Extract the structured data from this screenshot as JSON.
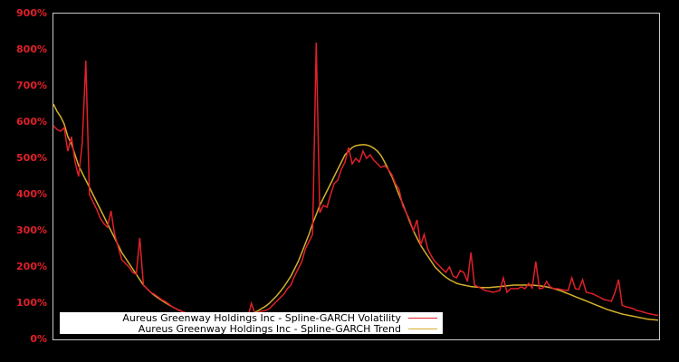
{
  "chart_data": {
    "type": "line",
    "title": "",
    "xlabel": "",
    "ylabel": "",
    "ylim": [
      0,
      900
    ],
    "yticks": [
      "0%",
      "100%",
      "200%",
      "300%",
      "400%",
      "500%",
      "600%",
      "700%",
      "800%",
      "900%"
    ],
    "grid": false,
    "legend_position": "lower-left",
    "background": "#000000",
    "axis_color": "#c8c8c8",
    "tick_color": "#e0202a",
    "series": [
      {
        "name": "Aureus Greenway Holdings Inc - Spline-GARCH Volatility",
        "color": "#e0202a",
        "values": [
          590,
          580,
          575,
          585,
          520,
          560,
          490,
          450,
          540,
          770,
          400,
          380,
          360,
          335,
          320,
          310,
          355,
          290,
          255,
          220,
          210,
          200,
          185,
          180,
          280,
          150,
          140,
          130,
          125,
          118,
          110,
          105,
          98,
          90,
          85,
          80,
          76,
          73,
          70,
          68,
          66,
          64,
          62,
          60,
          58,
          56,
          55,
          54,
          53,
          52,
          51,
          50,
          50,
          55,
          60,
          100,
          70,
          75,
          78,
          80,
          85,
          95,
          105,
          115,
          125,
          140,
          150,
          175,
          195,
          215,
          250,
          270,
          290,
          820,
          350,
          370,
          365,
          400,
          430,
          440,
          470,
          490,
          530,
          485,
          500,
          490,
          520,
          500,
          510,
          495,
          485,
          475,
          480,
          470,
          455,
          430,
          415,
          370,
          350,
          330,
          300,
          330,
          260,
          290,
          250,
          230,
          215,
          205,
          195,
          185,
          200,
          175,
          170,
          190,
          185,
          160,
          240,
          150,
          145,
          140,
          135,
          133,
          130,
          132,
          135,
          170,
          130,
          140,
          140,
          140,
          145,
          140,
          155,
          142,
          215,
          140,
          142,
          160,
          145,
          140,
          140,
          138,
          136,
          135,
          170,
          140,
          138,
          165,
          130,
          128,
          125,
          120,
          115,
          110,
          108,
          105,
          130,
          165,
          95,
          90,
          88,
          85,
          80,
          78,
          75,
          72,
          70,
          68,
          66
        ]
      },
      {
        "name": "Aureus Greenway Holdings Inc - Spline-GARCH Trend",
        "color": "#d4b02a",
        "values": [
          650,
          630,
          615,
          595,
          560,
          540,
          510,
          480,
          460,
          440,
          420,
          400,
          380,
          360,
          340,
          320,
          300,
          280,
          260,
          240,
          225,
          210,
          195,
          180,
          165,
          150,
          140,
          130,
          122,
          115,
          108,
          102,
          96,
          90,
          85,
          80,
          76,
          72,
          69,
          66,
          64,
          62,
          60,
          58,
          57,
          56,
          55,
          55,
          55,
          55,
          56,
          58,
          60,
          63,
          66,
          70,
          75,
          80,
          86,
          92,
          100,
          110,
          120,
          132,
          145,
          160,
          175,
          195,
          215,
          240,
          265,
          290,
          320,
          345,
          370,
          390,
          410,
          430,
          450,
          470,
          490,
          510,
          520,
          530,
          535,
          537,
          538,
          537,
          534,
          528,
          520,
          508,
          490,
          470,
          450,
          425,
          400,
          375,
          350,
          325,
          300,
          280,
          260,
          245,
          230,
          215,
          200,
          190,
          180,
          172,
          165,
          160,
          155,
          152,
          150,
          148,
          146,
          145,
          144,
          143,
          143,
          143,
          144,
          145,
          146,
          147,
          148,
          149,
          150,
          150,
          150,
          150,
          150,
          150,
          149,
          148,
          147,
          145,
          143,
          140,
          137,
          134,
          130,
          126,
          122,
          118,
          114,
          110,
          106,
          102,
          98,
          94,
          90,
          86,
          82,
          79,
          76,
          73,
          70,
          68,
          66,
          64,
          62,
          60,
          58,
          56,
          55,
          54,
          53
        ]
      }
    ]
  },
  "legend": {
    "items": [
      {
        "label": "Aureus Greenway Holdings Inc - Spline-GARCH Volatility",
        "color": "#e0202a"
      },
      {
        "label": "Aureus Greenway Holdings Inc - Spline-GARCH Trend",
        "color": "#d4b02a"
      }
    ]
  }
}
